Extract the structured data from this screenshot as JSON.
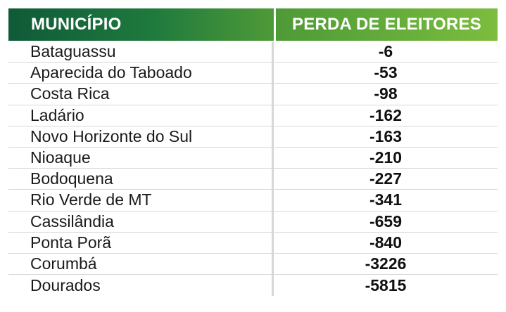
{
  "chart_data": {
    "type": "table",
    "columns": [
      "MUNICÍPIO",
      "PERDA DE ELEITORES"
    ],
    "rows": [
      {
        "municipio": "Bataguassu",
        "perda": "-6"
      },
      {
        "municipio": "Aparecida do Taboado",
        "perda": "-53"
      },
      {
        "municipio": "Costa Rica",
        "perda": "-98"
      },
      {
        "municipio": "Ladário",
        "perda": "-162"
      },
      {
        "municipio": "Novo Horizonte do Sul",
        "perda": "-163"
      },
      {
        "municipio": "Nioaque",
        "perda": "-210"
      },
      {
        "municipio": "Bodoquena",
        "perda": "-227"
      },
      {
        "municipio": "Rio Verde de MT",
        "perda": "-341"
      },
      {
        "municipio": "Cassilândia",
        "perda": "-659"
      },
      {
        "municipio": "Ponta Porã",
        "perda": "-840"
      },
      {
        "municipio": "Corumbá",
        "perda": "-3226"
      },
      {
        "municipio": "Dourados",
        "perda": "-5815"
      }
    ],
    "colors": {
      "header_left": "#1f7a3d",
      "header_right": "#63ab3a"
    }
  }
}
